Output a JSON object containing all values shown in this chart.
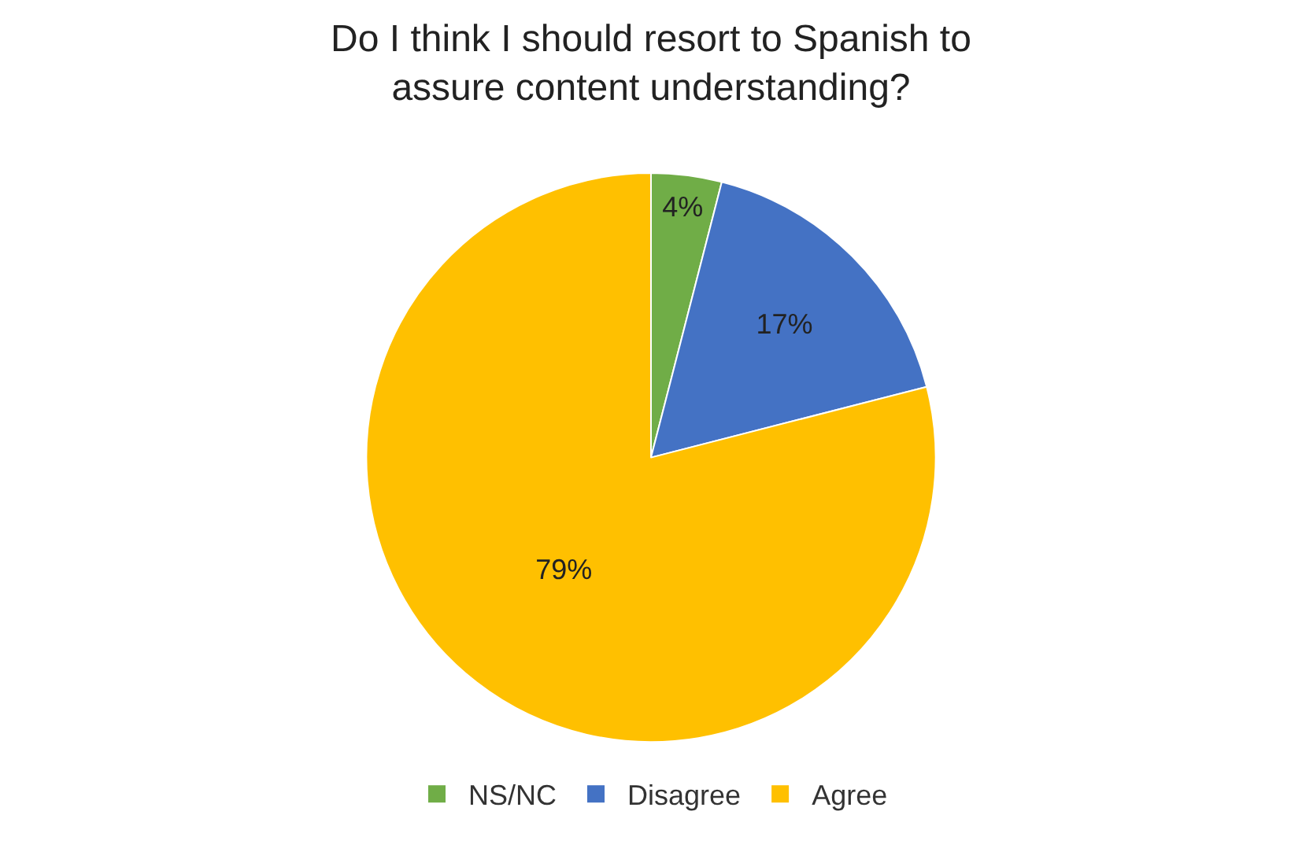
{
  "chart_data": {
    "type": "pie",
    "title": "Do I think I should resort to Spanish to\nassure content understanding?",
    "categories": [
      "NS/NC",
      "Disagree",
      "Agree"
    ],
    "values": [
      4,
      17,
      79
    ],
    "colors": [
      "#70ad47",
      "#4472c4",
      "#ffc000"
    ],
    "value_labels": [
      "4%",
      "17%",
      "79%"
    ],
    "legend": "bottom"
  }
}
